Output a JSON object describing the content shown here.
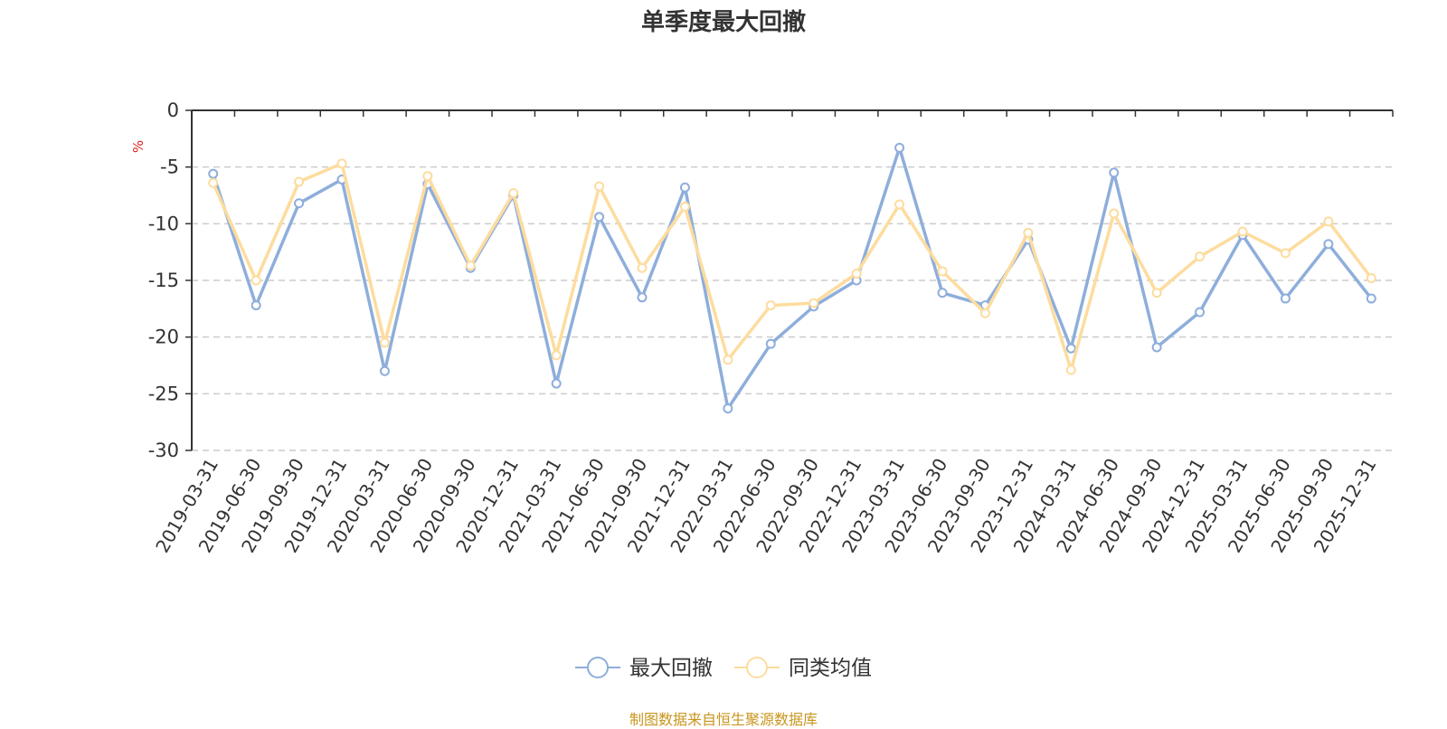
{
  "chart_data": {
    "type": "line",
    "title": "单季度最大回撤",
    "ylabel": "%",
    "xlabel": "",
    "ylim": [
      -30,
      0
    ],
    "yticks": [
      0,
      -5,
      -10,
      -15,
      -20,
      -25,
      -30
    ],
    "grid": true,
    "legend_position": "bottom-center",
    "categories": [
      "2019-03-31",
      "2019-06-30",
      "2019-09-30",
      "2019-12-31",
      "2020-03-31",
      "2020-06-30",
      "2020-09-30",
      "2020-12-31",
      "2021-03-31",
      "2021-06-30",
      "2021-09-30",
      "2021-12-31",
      "2022-03-31",
      "2022-06-30",
      "2022-09-30",
      "2022-12-31",
      "2023-03-31",
      "2023-06-30",
      "2023-09-30",
      "2023-12-31",
      "2024-03-31",
      "2024-06-30",
      "2024-09-30",
      "2024-12-31",
      "2025-03-31",
      "2025-06-30",
      "2025-09-30",
      "2025-12-31"
    ],
    "series": [
      {
        "name": "最大回撤",
        "color": "#8eaedb",
        "values": [
          -5.6,
          -17.2,
          -8.2,
          -6.1,
          -23.0,
          -6.5,
          -13.9,
          -7.5,
          -24.1,
          -9.4,
          -16.5,
          -6.8,
          -26.3,
          -20.6,
          -17.3,
          -15.0,
          -3.3,
          -16.1,
          -17.2,
          -11.4,
          -21.0,
          -5.5,
          -20.9,
          -17.8,
          -11.0,
          -16.6,
          -11.8,
          -16.6
        ]
      },
      {
        "name": "同类均值",
        "color": "#fddc9e",
        "values": [
          -6.4,
          -15.0,
          -6.3,
          -4.7,
          -20.5,
          -5.8,
          -13.7,
          -7.3,
          -21.6,
          -6.7,
          -13.9,
          -8.5,
          -22.0,
          -17.2,
          -17.0,
          -14.4,
          -8.3,
          -14.2,
          -17.9,
          -10.8,
          -22.9,
          -9.1,
          -16.1,
          -12.9,
          -10.7,
          -12.6,
          -9.8,
          -14.8
        ]
      }
    ]
  },
  "footer": {
    "source": "制图数据来自恒生聚源数据库"
  }
}
